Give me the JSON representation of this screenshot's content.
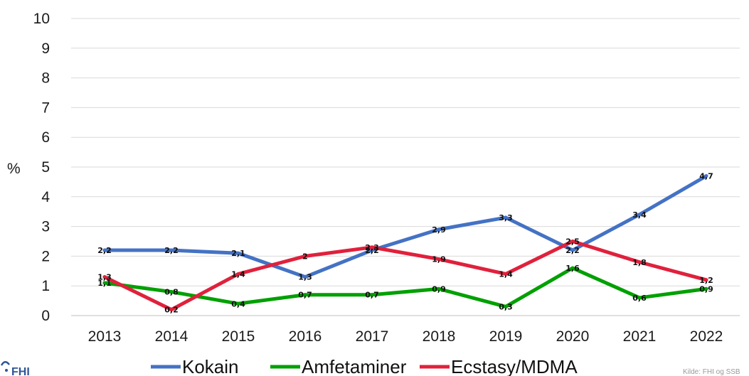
{
  "chart_data": {
    "type": "line",
    "title": "",
    "ylabel": "%",
    "xlabel": "",
    "ylim": [
      0,
      10
    ],
    "yticks": [
      "0",
      "1",
      "2",
      "3",
      "4",
      "5",
      "6",
      "7",
      "8",
      "9",
      "10"
    ],
    "categories": [
      "2013",
      "2014",
      "2015",
      "2016",
      "2017",
      "2018",
      "2019",
      "2020",
      "2021",
      "2022"
    ],
    "grid": true,
    "legend_position": "bottom",
    "series": [
      {
        "name": "Kokain",
        "color": "#4472C4",
        "values": [
          2.2,
          2.2,
          2.1,
          1.3,
          2.2,
          2.9,
          3.3,
          2.2,
          3.4,
          4.7
        ],
        "labels": [
          "2,2",
          "2,2",
          "2,1",
          "1,3",
          "2,2",
          "2,9",
          "3,3",
          "2,2",
          "3,4",
          "4,7"
        ]
      },
      {
        "name": "Amfetaminer",
        "color": "#00A000",
        "values": [
          1.1,
          0.8,
          0.4,
          0.7,
          0.7,
          0.9,
          0.3,
          1.6,
          0.6,
          0.9
        ],
        "labels": [
          "1,1",
          "0,8",
          "0,4",
          "0,7",
          "0,7",
          "0,9",
          "0,3",
          "1,6",
          "0,6",
          "0,9"
        ]
      },
      {
        "name": "Ecstasy/MDMA",
        "color": "#E0213C",
        "values": [
          1.3,
          0.2,
          1.4,
          2.0,
          2.3,
          1.9,
          1.4,
          2.5,
          1.8,
          1.2
        ],
        "labels": [
          "1,3",
          "0,2",
          "1,4",
          "2",
          "2,3",
          "1,9",
          "1,4",
          "2,5",
          "1,8",
          "1,2"
        ]
      }
    ]
  },
  "footer": {
    "logo_text": "FHI",
    "source": "Kilde: FHI og SSB"
  }
}
